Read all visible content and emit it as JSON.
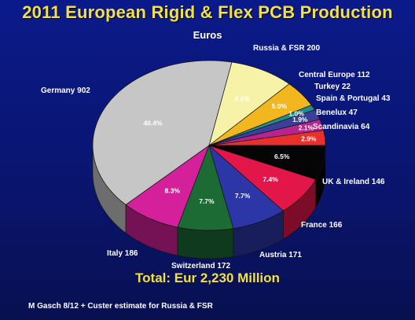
{
  "chart_data": {
    "type": "pie",
    "title": "2011 European Rigid & Flex PCB Production",
    "subtitle": "Euros",
    "total_label": "Total: Eur 2,230 Million",
    "source": "M Gasch 8/12 + Custer estimate for Russia & FSR",
    "slices": [
      {
        "label": "Scandinavia",
        "value": 64,
        "pct": "2.9%",
        "color": "#e8312b"
      },
      {
        "label": "Benelux",
        "value": 47,
        "pct": "2.1%",
        "color": "#b8248e"
      },
      {
        "label": "Spain & Portugal",
        "value": 43,
        "pct": "1.9%",
        "color": "#3a3f9c"
      },
      {
        "label": "Turkey",
        "value": 22,
        "pct": "1.0%",
        "color": "#1e8f8a"
      },
      {
        "label": "Central Europe",
        "value": 112,
        "pct": "5.0%",
        "color": "#f2b71f"
      },
      {
        "label": "Russia & FSR",
        "value": 200,
        "pct": "9.0%",
        "color": "#f6f2a8"
      },
      {
        "label": "Germany",
        "value": 902,
        "pct": "40.4%",
        "color": "#c6c6c6"
      },
      {
        "label": "Italy",
        "value": 186,
        "pct": "8.3%",
        "color": "#d4209a"
      },
      {
        "label": "Switzerland",
        "value": 172,
        "pct": "7.7%",
        "color": "#1c6a34"
      },
      {
        "label": "Austria",
        "value": 171,
        "pct": "7.7%",
        "color": "#2c36a6"
      },
      {
        "label": "France",
        "value": 166,
        "pct": "7.4%",
        "color": "#e3164a"
      },
      {
        "label": "UK & Ireland",
        "value": 146,
        "pct": "6.5%",
        "color": "#050505"
      }
    ]
  }
}
